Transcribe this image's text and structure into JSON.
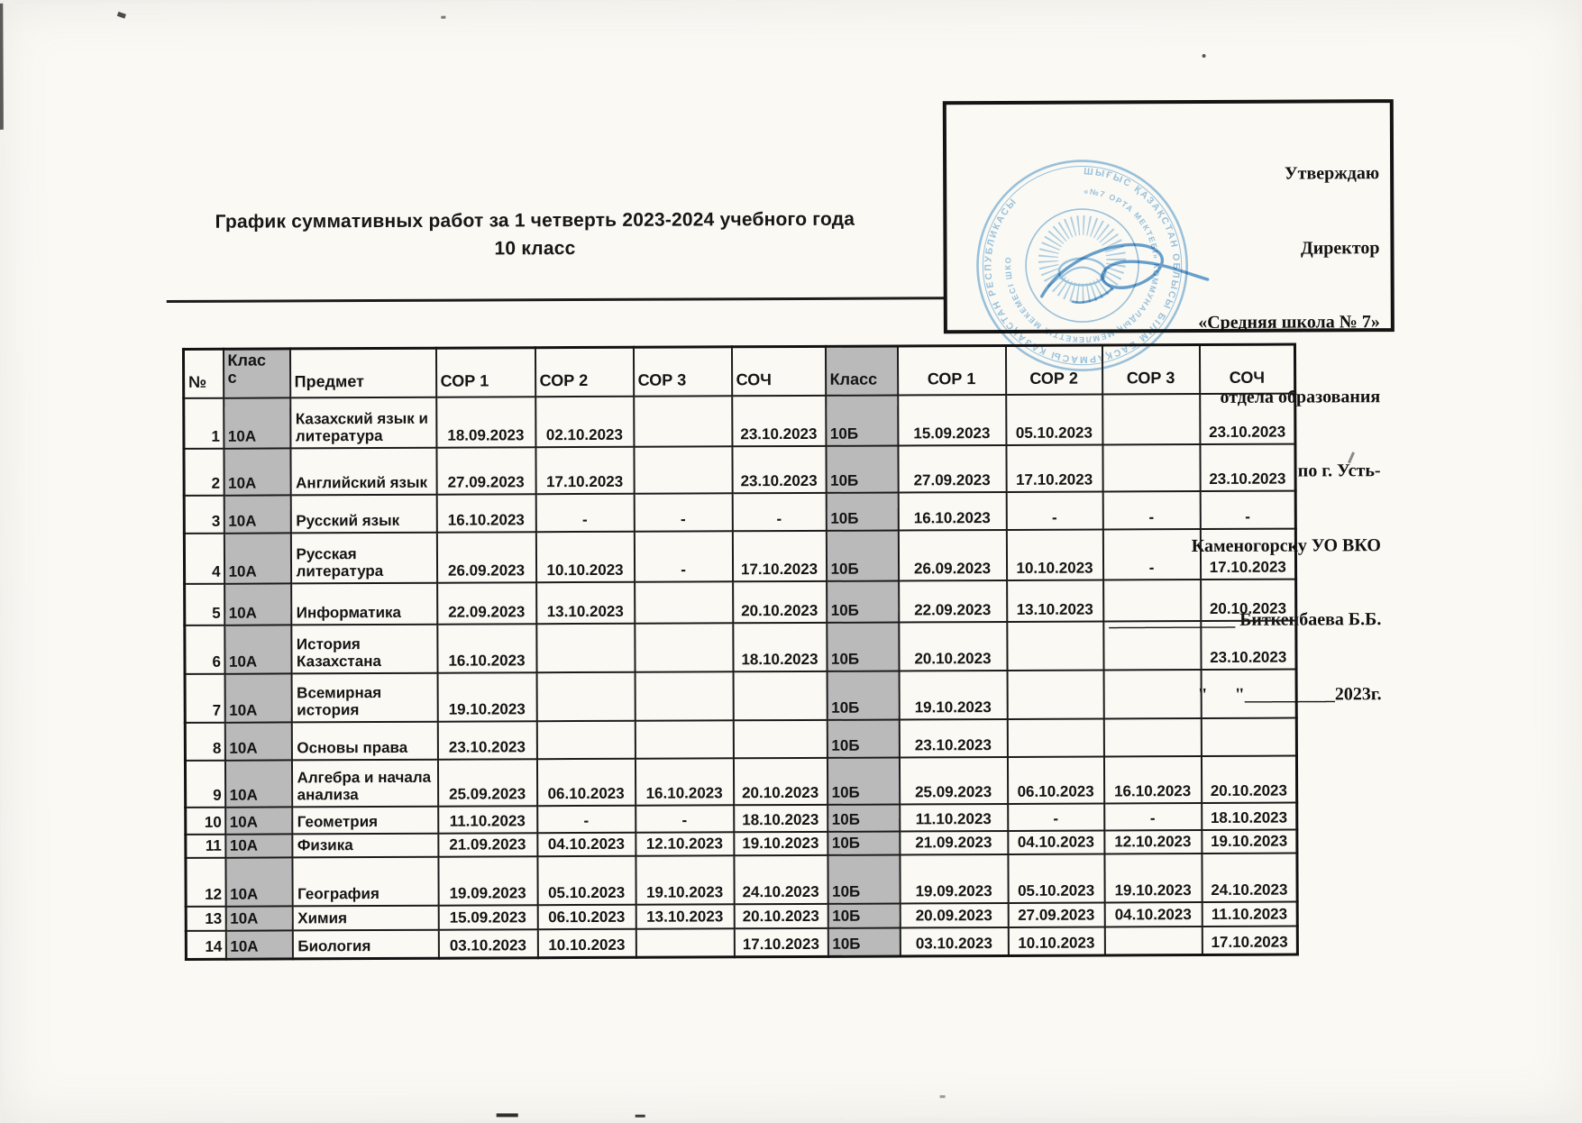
{
  "page": {
    "title_line1": "График суммативных работ за 1 четверть 2023-2024 учебного года",
    "title_line2": "10 класс"
  },
  "approval": {
    "lines": [
      "Утверждаю",
      "Директор",
      "«Средняя школа № 7»",
      "отдела образования",
      "по г. Усть-",
      "Каменогорску УО ВКО"
    ],
    "signature_blank": "______________ ",
    "signer": "Биткенбаева Б.Б.",
    "date_line": "\"      \"__________2023г."
  },
  "stamp": {
    "outer_text": "ШЫҒЫС ҚАЗАҚСТАН ОБЛЫСЫ БІЛІМ БАСҚАРМАСЫ ҚАЗАҚСТАН РЕСПУБЛИКАСЫ",
    "inner_text": "«№7 ОРТА МЕКТЕБІ» КОММУНАЛДЫҚ МЕМЛЕКЕТТІК МЕКЕМЕСІ ШКО",
    "color": "#7fb5dc"
  },
  "colors": {
    "class_column_bg": "#b9bab9",
    "stamp_blue": "#7fb5dc",
    "signature_blue": "#4f93cc"
  },
  "table": {
    "headers": [
      "№",
      "Класс",
      "Предмет",
      "СОР 1",
      "СОР 2",
      "СОР 3",
      "СОЧ",
      "Класс",
      "СОР 1",
      "СОР 2",
      "СОР 3",
      "СОЧ"
    ],
    "rows": [
      {
        "num": "1",
        "cls_a": "10А",
        "subject": "Казахский язык и литература",
        "a": [
          "18.09.2023",
          "02.10.2023",
          "",
          "23.10.2023"
        ],
        "cls_b": "10Б",
        "b": [
          "15.09.2023",
          "05.10.2023",
          "",
          "23.10.2023"
        ]
      },
      {
        "num": "2",
        "cls_a": "10А",
        "subject": "Английский язык",
        "a": [
          "27.09.2023",
          "17.10.2023",
          "",
          "23.10.2023"
        ],
        "cls_b": "10Б",
        "b": [
          "27.09.2023",
          "17.10.2023",
          "",
          "23.10.2023"
        ]
      },
      {
        "num": "3",
        "cls_a": "10А",
        "subject": "Русский язык",
        "a": [
          "16.10.2023",
          "-",
          "-",
          "-"
        ],
        "cls_b": "10Б",
        "b": [
          "16.10.2023",
          "-",
          "-",
          "-"
        ]
      },
      {
        "num": "4",
        "cls_a": "10А",
        "subject": "Русская литература",
        "a": [
          "26.09.2023",
          "10.10.2023",
          "-",
          "17.10.2023"
        ],
        "cls_b": "10Б",
        "b": [
          "26.09.2023",
          "10.10.2023",
          "-",
          "17.10.2023"
        ]
      },
      {
        "num": "5",
        "cls_a": "10А",
        "subject": "Информатика",
        "a": [
          "22.09.2023",
          "13.10.2023",
          "",
          "20.10.2023"
        ],
        "cls_b": "10Б",
        "b": [
          "22.09.2023",
          "13.10.2023",
          "",
          "20.10.2023"
        ]
      },
      {
        "num": "6",
        "cls_a": "10А",
        "subject": "История Казахстана",
        "a": [
          "16.10.2023",
          "",
          "",
          "18.10.2023"
        ],
        "cls_b": "10Б",
        "b": [
          "20.10.2023",
          "",
          "",
          "23.10.2023"
        ]
      },
      {
        "num": "7",
        "cls_a": "10А",
        "subject": "Всемирная история",
        "a": [
          "19.10.2023",
          "",
          "",
          ""
        ],
        "cls_b": "10Б",
        "b": [
          "19.10.2023",
          "",
          "",
          ""
        ]
      },
      {
        "num": "8",
        "cls_a": "10А",
        "subject": "Основы права",
        "a": [
          "23.10.2023",
          "",
          "",
          ""
        ],
        "cls_b": "10Б",
        "b": [
          "23.10.2023",
          "",
          "",
          ""
        ]
      },
      {
        "num": "9",
        "cls_a": "10А",
        "subject": "Алгебра и начала анализа",
        "a": [
          "25.09.2023",
          "06.10.2023",
          "16.10.2023",
          "20.10.2023"
        ],
        "cls_b": "10Б",
        "b": [
          "25.09.2023",
          "06.10.2023",
          "16.10.2023",
          "20.10.2023"
        ]
      },
      {
        "num": "10",
        "cls_a": "10А",
        "subject": "Геометрия",
        "a": [
          "11.10.2023",
          "-",
          "-",
          "18.10.2023"
        ],
        "cls_b": "10Б",
        "b": [
          "11.10.2023",
          "-",
          "-",
          "18.10.2023"
        ]
      },
      {
        "num": "11",
        "cls_a": "10А",
        "subject": "Физика",
        "a": [
          "21.09.2023",
          "04.10.2023",
          "12.10.2023",
          "19.10.2023"
        ],
        "cls_b": "10Б",
        "b": [
          "21.09.2023",
          "04.10.2023",
          "12.10.2023",
          "19.10.2023"
        ]
      },
      {
        "num": "12",
        "cls_a": "10А",
        "subject": "География",
        "a": [
          "19.09.2023",
          "05.10.2023",
          "19.10.2023",
          "24.10.2023"
        ],
        "cls_b": "10Б",
        "b": [
          "19.09.2023",
          "05.10.2023",
          "19.10.2023",
          "24.10.2023"
        ]
      },
      {
        "num": "13",
        "cls_a": "10А",
        "subject": "Химия",
        "a": [
          "15.09.2023",
          "06.10.2023",
          "13.10.2023",
          "20.10.2023"
        ],
        "cls_b": "10Б",
        "b": [
          "20.09.2023",
          "27.09.2023",
          "04.10.2023",
          "11.10.2023"
        ]
      },
      {
        "num": "14",
        "cls_a": "10А",
        "subject": "Биология",
        "a": [
          "03.10.2023",
          "10.10.2023",
          "",
          "17.10.2023"
        ],
        "cls_b": "10Б",
        "b": [
          "03.10.2023",
          "10.10.2023",
          "",
          "17.10.2023"
        ]
      }
    ]
  }
}
